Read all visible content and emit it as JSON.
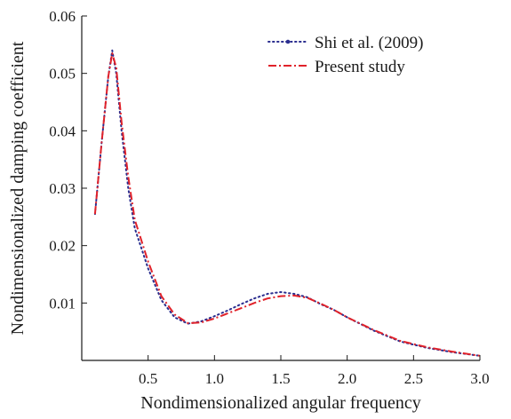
{
  "chart_data": {
    "type": "line",
    "title": "",
    "xlabel": "Nondimensionalized angular frequency",
    "ylabel": "Nondimensionalized damping coefficient",
    "xlim": [
      0.0,
      3.0
    ],
    "ylim": [
      0.0,
      0.06
    ],
    "xticks": [
      {
        "value": 0.5,
        "label": "0.5"
      },
      {
        "value": 1.0,
        "label": "1.0"
      },
      {
        "value": 1.5,
        "label": "1.5"
      },
      {
        "value": 2.0,
        "label": "2.0"
      },
      {
        "value": 2.5,
        "label": "2.5"
      },
      {
        "value": 3.0,
        "label": "3.0"
      }
    ],
    "yticks": [
      {
        "value": 0.01,
        "label": "0.01"
      },
      {
        "value": 0.02,
        "label": "0.02"
      },
      {
        "value": 0.03,
        "label": "0.03"
      },
      {
        "value": 0.04,
        "label": "0.04"
      },
      {
        "value": 0.05,
        "label": "0.05"
      },
      {
        "value": 0.06,
        "label": "0.06"
      }
    ],
    "grid": false,
    "legend": "top-right",
    "series": [
      {
        "name": "Shi et al. (2009)",
        "color": "#2b2e8f",
        "dash": "dotted",
        "x": [
          0.1,
          0.15,
          0.2,
          0.23,
          0.26,
          0.3,
          0.35,
          0.4,
          0.5,
          0.6,
          0.7,
          0.8,
          0.9,
          1.0,
          1.1,
          1.2,
          1.3,
          1.4,
          1.5,
          1.6,
          1.7,
          1.8,
          1.9,
          2.0,
          2.2,
          2.4,
          2.6,
          2.8,
          3.0
        ],
        "y": [
          0.0255,
          0.038,
          0.0495,
          0.054,
          0.05,
          0.04,
          0.03,
          0.023,
          0.016,
          0.0105,
          0.0075,
          0.0064,
          0.0068,
          0.0077,
          0.0087,
          0.0098,
          0.0108,
          0.0116,
          0.0119,
          0.0116,
          0.011,
          0.0098,
          0.0088,
          0.0075,
          0.0052,
          0.0033,
          0.0022,
          0.0014,
          0.0008
        ]
      },
      {
        "name": "Present study",
        "color": "#e0222a",
        "dash": "dashdot",
        "x": [
          0.1,
          0.15,
          0.2,
          0.23,
          0.26,
          0.3,
          0.35,
          0.4,
          0.5,
          0.6,
          0.7,
          0.8,
          0.9,
          1.0,
          1.1,
          1.2,
          1.3,
          1.4,
          1.5,
          1.6,
          1.7,
          1.8,
          1.9,
          2.0,
          2.2,
          2.4,
          2.6,
          2.8,
          3.0
        ],
        "y": [
          0.0255,
          0.038,
          0.0495,
          0.0535,
          0.051,
          0.0415,
          0.032,
          0.0245,
          0.0172,
          0.0112,
          0.008,
          0.0065,
          0.0066,
          0.0073,
          0.0082,
          0.0091,
          0.01,
          0.0108,
          0.0112,
          0.0113,
          0.0109,
          0.0099,
          0.0088,
          0.0075,
          0.0053,
          0.0034,
          0.0023,
          0.0015,
          0.0008
        ]
      }
    ]
  }
}
